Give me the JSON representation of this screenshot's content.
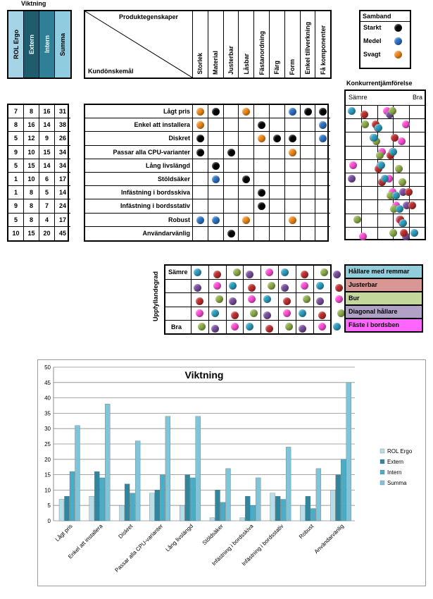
{
  "weighting": {
    "title": "Viktning",
    "columns": [
      "ROL Ergo",
      "Extern",
      "Intern",
      "Summa"
    ],
    "column_colors": [
      "#a5d4e6",
      "#1f5c6e",
      "#2f7f96",
      "#8fcce0"
    ]
  },
  "matrix": {
    "header_top": "Produktegenskaper",
    "header_bottom": "Kundönskemål",
    "properties": [
      "Storlek",
      "Material",
      "Justerbar",
      "Låsbar",
      "Fästanordning",
      "Färg",
      "Form",
      "Enkel tillverkning",
      "Få komponenter"
    ],
    "needs": [
      {
        "name": "Lågt pris",
        "weights": [
          7,
          8,
          16,
          31
        ],
        "cells": [
          "o",
          "k",
          "",
          "o",
          "",
          "",
          "b",
          "k",
          "k"
        ]
      },
      {
        "name": "Enkel att installera",
        "weights": [
          8,
          16,
          14,
          38
        ],
        "cells": [
          "o",
          "",
          "",
          "",
          "k",
          "",
          "",
          "",
          "b"
        ]
      },
      {
        "name": "Diskret",
        "weights": [
          5,
          12,
          9,
          26
        ],
        "cells": [
          "k",
          "",
          "",
          "",
          "o",
          "k",
          "k",
          "",
          "b"
        ]
      },
      {
        "name": "Passar alla CPU-varianter",
        "weights": [
          9,
          10,
          15,
          34
        ],
        "cells": [
          "k",
          "",
          "k",
          "",
          "",
          "",
          "o",
          "",
          ""
        ]
      },
      {
        "name": "Lång livslängd",
        "weights": [
          5,
          15,
          14,
          34
        ],
        "cells": [
          "",
          "k",
          "",
          "",
          "",
          "",
          "",
          "",
          ""
        ]
      },
      {
        "name": "Stöldsäker",
        "weights": [
          1,
          10,
          6,
          17
        ],
        "cells": [
          "",
          "b",
          "",
          "k",
          "",
          "",
          "",
          "",
          ""
        ]
      },
      {
        "name": "Infästning i bordsskiva",
        "weights": [
          1,
          8,
          5,
          14
        ],
        "cells": [
          "",
          "",
          "",
          "",
          "k",
          "",
          "",
          "",
          ""
        ]
      },
      {
        "name": "Infästning i bordsstativ",
        "weights": [
          9,
          8,
          7,
          24
        ],
        "cells": [
          "",
          "",
          "",
          "",
          "k",
          "",
          "",
          "",
          ""
        ]
      },
      {
        "name": "Robust",
        "weights": [
          5,
          8,
          4,
          17
        ],
        "cells": [
          "b",
          "b",
          "",
          "o",
          "",
          "",
          "o",
          "",
          ""
        ]
      },
      {
        "name": "Användarvänlig",
        "weights": [
          10,
          15,
          20,
          45
        ],
        "cells": [
          "",
          "",
          "k",
          "",
          "",
          "",
          "",
          "",
          ""
        ]
      }
    ]
  },
  "relation_legend": {
    "title": "Samband",
    "items": [
      {
        "label": "Starkt",
        "color": "#000000"
      },
      {
        "label": "Medel",
        "color": "#2e75c8"
      },
      {
        "label": "Svagt",
        "color": "#f28a1a"
      }
    ]
  },
  "competitor": {
    "title": "Konkurrentjämförelse",
    "worse": "Sämre",
    "better": "Bra"
  },
  "fulfillment": {
    "axis_label": "Uppfyllandegrad",
    "worse": "Sämre",
    "better": "Bra"
  },
  "product_legend": [
    {
      "label": "Hållare med remmar",
      "color": "#92cddc"
    },
    {
      "label": "Justerbar",
      "color": "#d99694"
    },
    {
      "label": "Bur",
      "color": "#c3d69b"
    },
    {
      "label": "Diagonal hållare",
      "color": "#b2a1c7"
    },
    {
      "label": "Fäste i bordsben",
      "color": "#ff66ff"
    }
  ],
  "dot_colors": {
    "k": "#000000",
    "b": "#2e75c8",
    "o": "#f28a1a"
  },
  "product_dot_colors": [
    "#2e9fc0",
    "#c0302f",
    "#8fb04a",
    "#7a4fa0",
    "#ff4fd8"
  ],
  "chart_data": {
    "type": "bar",
    "title": "Viktning",
    "categories": [
      "Lågt pris",
      "Enkel att installera",
      "Diskret",
      "Passar alla CPU-varianter",
      "Lång livslängd",
      "Stöldsäker",
      "Infästning i bordsskiva",
      "Infästning i bordsstativ",
      "Robust",
      "Användarvänlig"
    ],
    "series": [
      {
        "name": "ROL Ergo",
        "color": "#b7dde8",
        "values": [
          7,
          8,
          5,
          9,
          5,
          1,
          1,
          9,
          5,
          10
        ]
      },
      {
        "name": "Extern",
        "color": "#31859c",
        "values": [
          8,
          16,
          12,
          10,
          15,
          10,
          8,
          8,
          8,
          15
        ]
      },
      {
        "name": "Intern",
        "color": "#4bacc6",
        "values": [
          16,
          14,
          9,
          15,
          14,
          6,
          5,
          7,
          4,
          20
        ]
      },
      {
        "name": "Summa",
        "color": "#7fc4d8",
        "values": [
          31,
          38,
          26,
          34,
          34,
          17,
          14,
          24,
          17,
          45
        ]
      }
    ],
    "ylim": [
      0,
      50
    ],
    "yticks": [
      0,
      5,
      10,
      15,
      20,
      25,
      30,
      35,
      40,
      45,
      50
    ],
    "legend": "right",
    "grid": true
  }
}
